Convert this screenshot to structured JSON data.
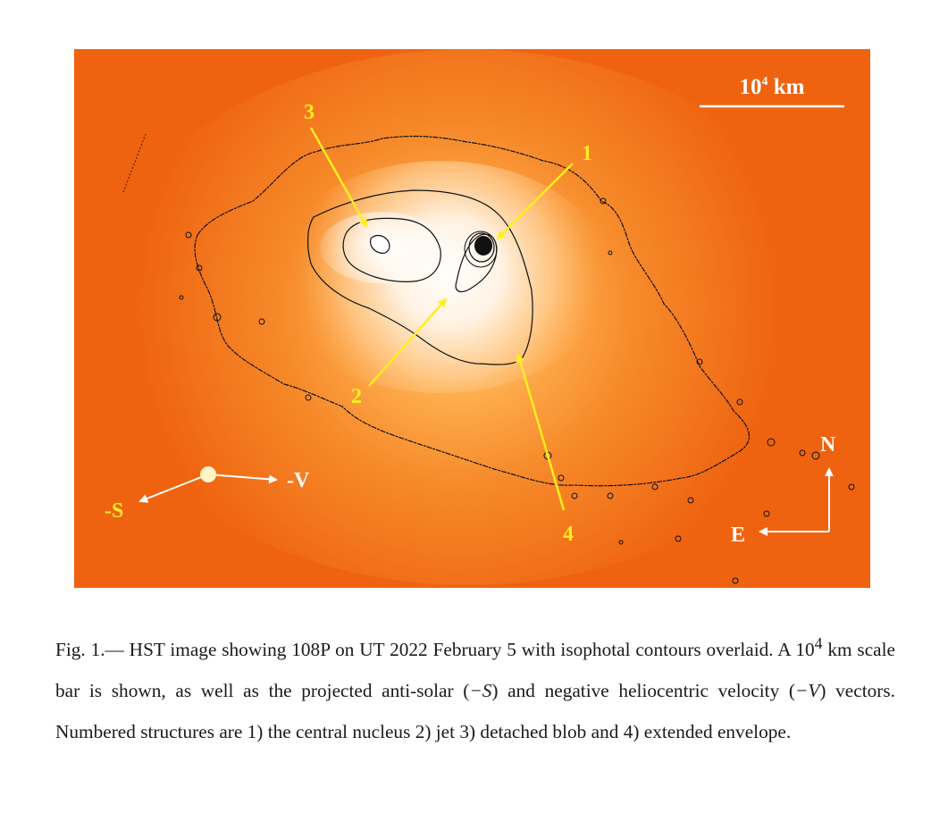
{
  "figure": {
    "scale_bar_label_base": "10",
    "scale_bar_label_exp": "4",
    "scale_bar_label_unit": " km",
    "labels": {
      "nucleus": "1",
      "jet": "2",
      "blob": "3",
      "envelope": "4"
    },
    "anti_solar_label": "-S",
    "velocity_label": "-V",
    "compass_north": "N",
    "compass_east": "E",
    "colors": {
      "background_orange": "#f06a12",
      "coma_core": "#ffffff",
      "arrow_yellow": "#ffee22",
      "contour": "#111111"
    }
  },
  "caption": {
    "prefix": "Fig. 1.— HST image showing 108P on UT 2022 February 5 with isophotal contours overlaid. A 10",
    "sup": "4",
    "part2": " km scale bar is shown, as well as the projected anti-solar (",
    "math_s": "−S",
    "part3": ") and negative heliocentric velocity (",
    "math_v": "−V",
    "part4": ") vectors. Numbered structures are 1) the central nucleus 2) jet 3) detached blob and 4) extended envelope."
  }
}
